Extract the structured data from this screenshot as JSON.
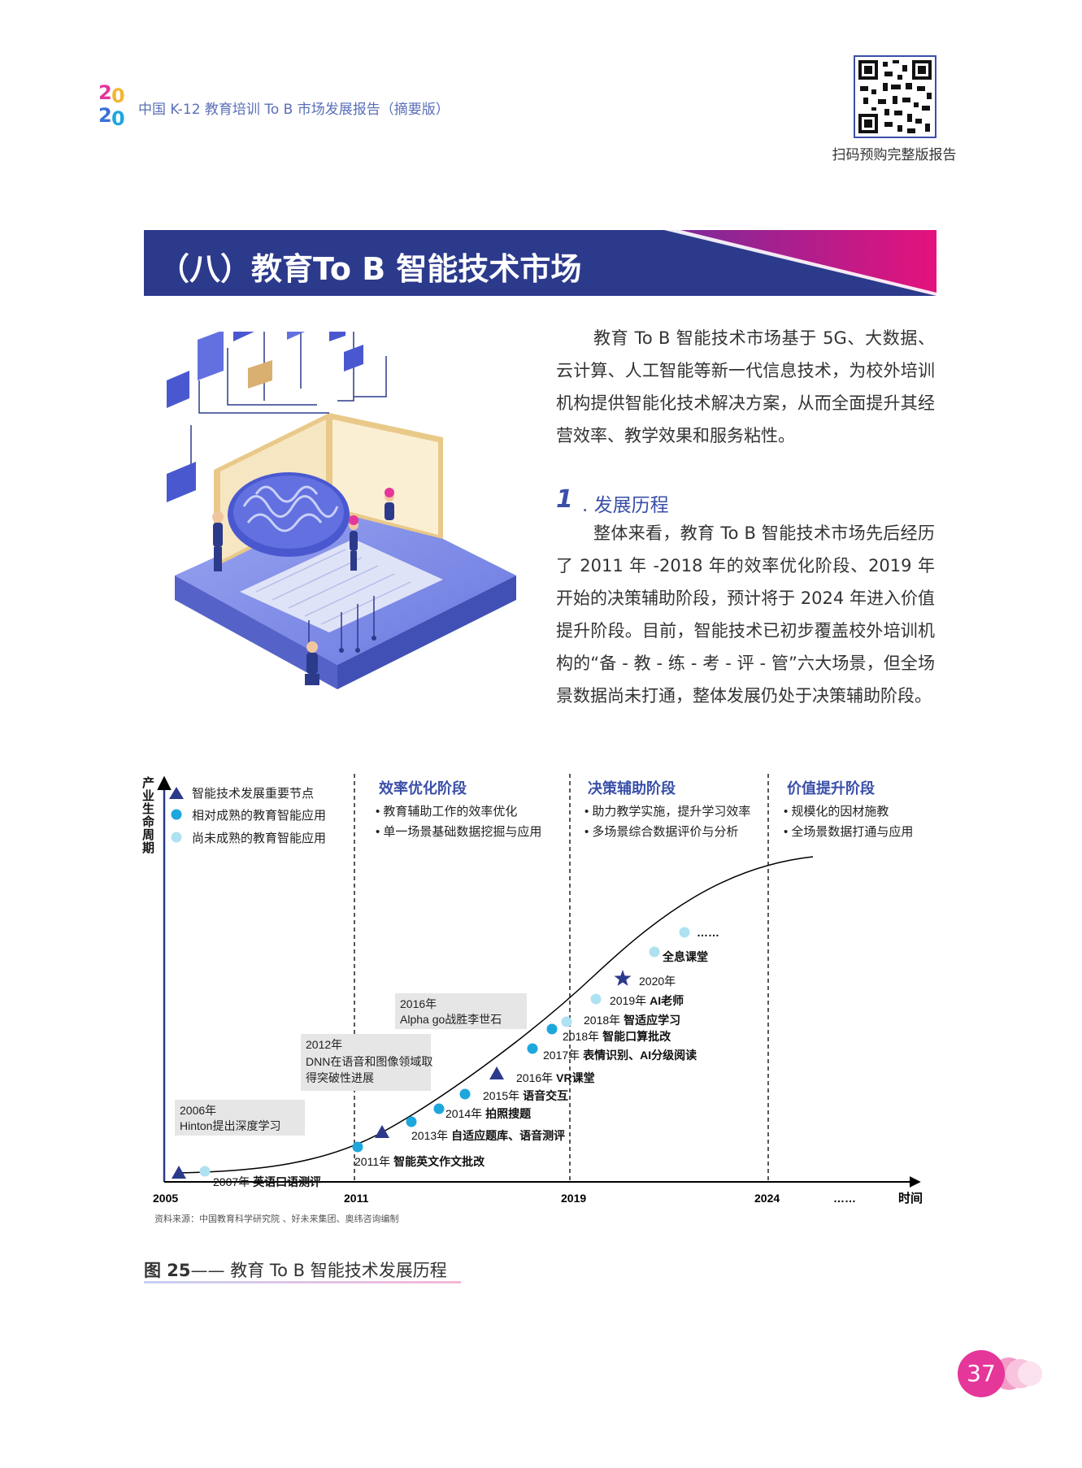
{
  "header": {
    "logo_digits": [
      "2",
      "0",
      "2",
      "0"
    ],
    "title": "中国 K-12 教育培训 To B 市场发展报告（摘要版）",
    "qr_caption": "扫码预购完整版报告"
  },
  "section": {
    "banner_title": "（八）教育To B 智能技术市场",
    "intro": "教育 To B 智能技术市场基于 5G、大数据、云计算、人工智能等新一代信息技术，为校外培训机构提供智能化技术解决方案，从而全面提升其经营效率、教学效果和服务粘性。",
    "sub_number": "1",
    "sub_title": ". 发展历程",
    "body": "整体来看，教育 To B 智能技术市场先后经历了 2011 年 -2018 年的效率优化阶段、2019 年开始的决策辅助阶段，预计将于 2024 年进入价值提升阶段。目前，智能技术已初步覆盖校外培训机构的“备 - 教 - 练 - 考 - 评 - 管”六大场景，但全场景数据尚未打通，整体发展仍处于决策辅助阶段。"
  },
  "chart_data": {
    "type": "line",
    "ylabel": "产业生命周期",
    "xlabel": "时间",
    "x_ticks": [
      "2005",
      "2011",
      "2019",
      "2024",
      "……"
    ],
    "legend": [
      {
        "marker": "triangle",
        "label": "智能技术发展重要节点"
      },
      {
        "marker": "dot-dark",
        "label": "相对成熟的教育智能应用"
      },
      {
        "marker": "dot-light",
        "label": "尚未成熟的教育智能应用"
      }
    ],
    "stages": [
      {
        "title": "效率优化阶段",
        "bullets": [
          "• 教育辅助工作的效率优化",
          "• 单一场景基础数据挖掘与应用"
        ]
      },
      {
        "title": "决策辅助阶段",
        "bullets": [
          "• 助力教学实施，提升学习效率",
          "• 多场景综合数据评价与分析"
        ]
      },
      {
        "title": "价值提升阶段",
        "bullets": [
          "• 规模化的因材施教",
          "• 全场景数据打通与应用"
        ]
      }
    ],
    "milestones": [
      {
        "year": "2006年",
        "text": "Hinton提出深度学习"
      },
      {
        "year": "2012年",
        "text": "DNN在语音和图像领域取得突破性进展"
      },
      {
        "year": "2016年",
        "text": "Alpha go战胜李世石"
      }
    ],
    "points": [
      {
        "marker": "triangle",
        "year": "",
        "label": ""
      },
      {
        "marker": "dot-light",
        "year": "2007年",
        "label": "英语口语测评"
      },
      {
        "marker": "dot-dark",
        "year": "2011年",
        "label": "智能英文作文批改"
      },
      {
        "marker": "triangle",
        "year": "",
        "label": ""
      },
      {
        "marker": "dot-dark",
        "year": "2013年",
        "label": "自适应题库、语音测评"
      },
      {
        "marker": "dot-dark",
        "year": "2014年",
        "label": "拍照搜题"
      },
      {
        "marker": "dot-dark",
        "year": "2015年",
        "label": "语音交互"
      },
      {
        "marker": "triangle",
        "year": "2016年",
        "label": "VR课堂"
      },
      {
        "marker": "dot-dark",
        "year": "2017年",
        "label": "表情识别、AI分级阅读"
      },
      {
        "marker": "dot-dark",
        "year": "2018年",
        "label": "智能口算批改"
      },
      {
        "marker": "dot-light",
        "year": "2018年",
        "label": "智适应学习"
      },
      {
        "marker": "dot-light",
        "year": "2019年",
        "label": "AI老师"
      },
      {
        "marker": "star",
        "year": "2020年",
        "label": ""
      },
      {
        "marker": "dot-light",
        "year": "",
        "label": "全息课堂"
      },
      {
        "marker": "dot-light",
        "year": "",
        "label": "……"
      }
    ]
  },
  "source_note": "资料来源：中国教育科学研究院 、好未来集团、奥纬咨询编制",
  "figure": {
    "number": "图 25",
    "dash": "——",
    "title": " 教育 To B 智能技术发展历程"
  },
  "page_number": "37",
  "colors": {
    "navy": "#2c3a8c",
    "magenta": "#e5127d",
    "accent_blue": "#3a4fa8",
    "dot_dark": "#1ea7dd",
    "dot_light": "#aee2f2"
  }
}
